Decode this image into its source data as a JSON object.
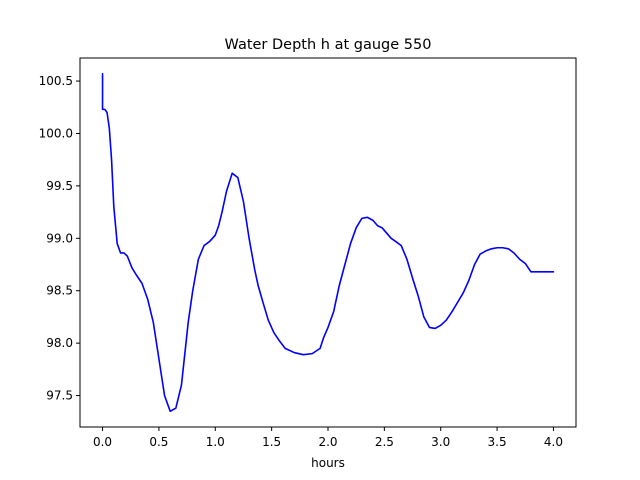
{
  "chart_data": {
    "type": "line",
    "title": "Water Depth h at gauge 550",
    "xlabel": "hours",
    "ylabel": "",
    "xlim": [
      -0.2,
      4.2
    ],
    "ylim": [
      97.2,
      100.72
    ],
    "xticks": [
      0.0,
      0.5,
      1.0,
      1.5,
      2.0,
      2.5,
      3.0,
      3.5,
      4.0
    ],
    "xtick_labels": [
      "0.0",
      "0.5",
      "1.0",
      "1.5",
      "2.0",
      "2.5",
      "3.0",
      "3.5",
      "4.0"
    ],
    "yticks": [
      97.5,
      98.0,
      98.5,
      99.0,
      99.5,
      100.0,
      100.5
    ],
    "ytick_labels": [
      "97.5",
      "98.0",
      "98.5",
      "99.0",
      "99.5",
      "100.0",
      "100.5"
    ],
    "grid": false,
    "legend": "none",
    "series": [
      {
        "color": "#0000ff",
        "x": [
          0.0,
          0.0,
          0.02,
          0.04,
          0.06,
          0.08,
          0.1,
          0.13,
          0.16,
          0.19,
          0.22,
          0.26,
          0.3,
          0.35,
          0.4,
          0.45,
          0.5,
          0.55,
          0.6,
          0.65,
          0.7,
          0.73,
          0.76,
          0.8,
          0.85,
          0.9,
          0.95,
          1.0,
          1.03,
          1.06,
          1.1,
          1.15,
          1.2,
          1.25,
          1.3,
          1.35,
          1.38,
          1.42,
          1.47,
          1.52,
          1.57,
          1.62,
          1.7,
          1.78,
          1.86,
          1.93,
          1.96,
          2.0,
          2.05,
          2.1,
          2.15,
          2.2,
          2.25,
          2.3,
          2.35,
          2.4,
          2.44,
          2.48,
          2.52,
          2.56,
          2.6,
          2.65,
          2.7,
          2.75,
          2.8,
          2.85,
          2.9,
          2.95,
          3.0,
          3.05,
          3.1,
          3.15,
          3.2,
          3.25,
          3.3,
          3.35,
          3.4,
          3.45,
          3.5,
          3.55,
          3.6,
          3.65,
          3.7,
          3.75,
          3.8,
          3.85,
          3.9,
          3.95,
          4.0
        ],
        "y": [
          100.57,
          100.23,
          100.23,
          100.2,
          100.05,
          99.75,
          99.3,
          98.95,
          98.86,
          98.86,
          98.83,
          98.72,
          98.65,
          98.57,
          98.42,
          98.2,
          97.85,
          97.5,
          97.35,
          97.38,
          97.6,
          97.9,
          98.2,
          98.5,
          98.8,
          98.93,
          98.97,
          99.03,
          99.12,
          99.25,
          99.45,
          99.62,
          99.58,
          99.35,
          99.0,
          98.7,
          98.55,
          98.4,
          98.22,
          98.1,
          98.02,
          97.95,
          97.91,
          97.89,
          97.9,
          97.95,
          98.05,
          98.15,
          98.3,
          98.55,
          98.75,
          98.95,
          99.1,
          99.19,
          99.2,
          99.17,
          99.12,
          99.1,
          99.05,
          99.0,
          98.97,
          98.93,
          98.8,
          98.62,
          98.45,
          98.25,
          98.15,
          98.14,
          98.17,
          98.22,
          98.3,
          98.39,
          98.48,
          98.6,
          98.75,
          98.85,
          98.88,
          98.9,
          98.91,
          98.91,
          98.9,
          98.86,
          98.8,
          98.76,
          98.68,
          98.68,
          98.68,
          98.68,
          98.68
        ]
      }
    ]
  }
}
